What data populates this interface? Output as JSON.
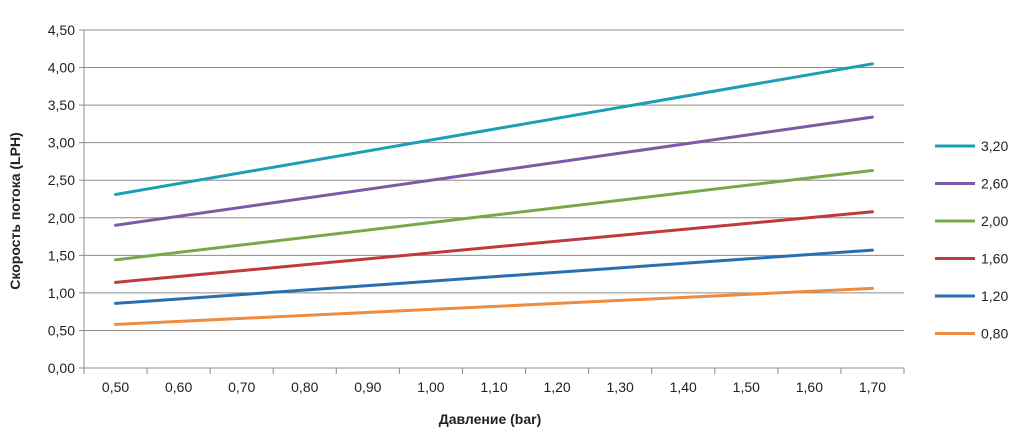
{
  "chart_data": {
    "type": "line",
    "xlabel": "Давление (bar)",
    "ylabel": "Скорость потока (LPH)",
    "x_ticks": [
      "0,50",
      "0,60",
      "0,70",
      "0,80",
      "0,90",
      "1,00",
      "1,10",
      "1,20",
      "1,30",
      "1,40",
      "1,50",
      "1,60",
      "1,70"
    ],
    "y_ticks": [
      "0,00",
      "0,50",
      "1,00",
      "1,50",
      "2,00",
      "2,50",
      "3,00",
      "3,50",
      "4,00",
      "4,50"
    ],
    "xlim": [
      0.45,
      1.75
    ],
    "ylim": [
      0,
      4.5
    ],
    "grid": "horizontal",
    "legend_position": "right",
    "series": [
      {
        "name": "3,20",
        "color": "#1aa0b4",
        "x": [
          0.5,
          1.7
        ],
        "y": [
          2.31,
          4.05
        ]
      },
      {
        "name": "2,60",
        "color": "#7b5aa6",
        "x": [
          0.5,
          1.7
        ],
        "y": [
          1.9,
          3.34
        ]
      },
      {
        "name": "2,00",
        "color": "#77a84a",
        "x": [
          0.5,
          1.7
        ],
        "y": [
          1.44,
          2.63
        ]
      },
      {
        "name": "1,60",
        "color": "#c0393b",
        "x": [
          0.5,
          1.7
        ],
        "y": [
          1.14,
          2.08
        ]
      },
      {
        "name": "1,20",
        "color": "#2a6fb0",
        "x": [
          0.5,
          1.7
        ],
        "y": [
          0.86,
          1.57
        ]
      },
      {
        "name": "0,80",
        "color": "#f08a3c",
        "x": [
          0.5,
          1.7
        ],
        "y": [
          0.58,
          1.06
        ]
      }
    ]
  }
}
